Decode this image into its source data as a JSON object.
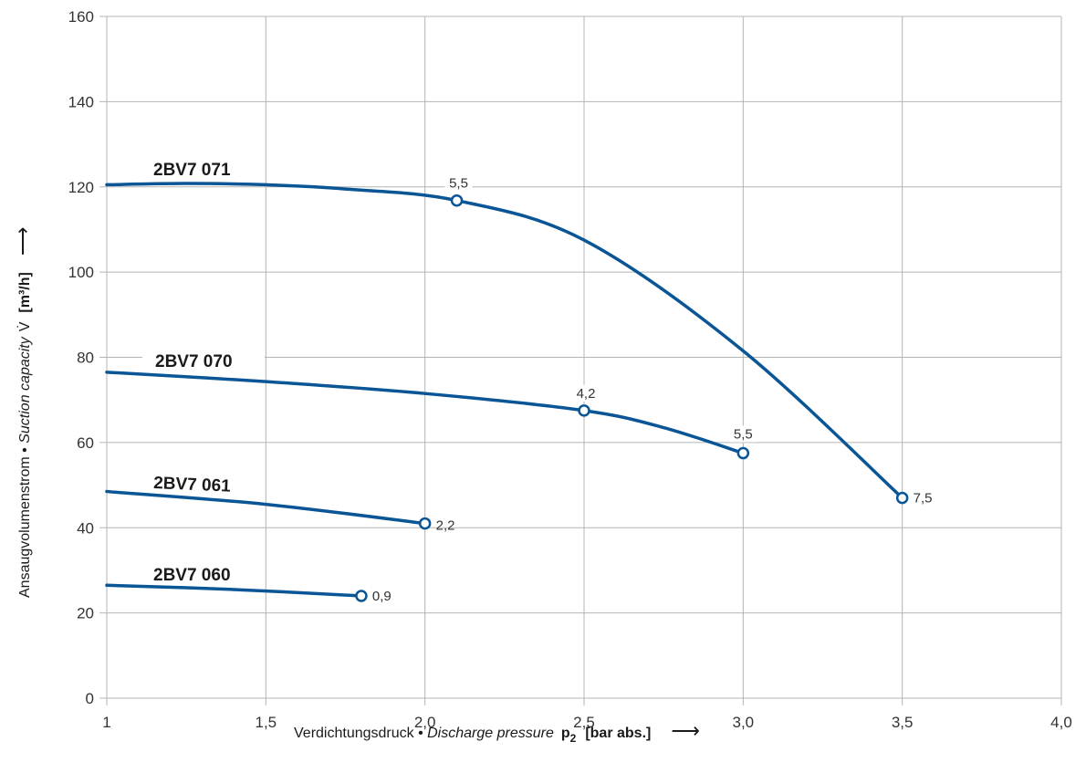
{
  "chart_data": {
    "type": "line",
    "xlim": [
      1,
      4
    ],
    "ylim": [
      0,
      160
    ],
    "x_ticks": [
      1,
      1.5,
      2,
      2.5,
      3,
      3.5,
      4
    ],
    "x_tick_labels": [
      "1",
      "1,5",
      "2,0",
      "2,5",
      "3,0",
      "3,5",
      "4,0"
    ],
    "y_ticks": [
      0,
      20,
      40,
      60,
      80,
      100,
      120,
      140,
      160
    ],
    "y_tick_labels": [
      "0",
      "20",
      "40",
      "60",
      "80",
      "100",
      "120",
      "140",
      "160"
    ],
    "grid": true,
    "xlabel": {
      "prefix": "Verdichtungsdruck • ",
      "italic": "Discharge pressure",
      "symbol": "p",
      "subscript": "2",
      "unit": "[bar abs.]",
      "arrow": "⟶"
    },
    "ylabel": {
      "prefix": "Ansaugvolumenstrom • ",
      "italic": "Suction capacity",
      "symbol": "V̇",
      "unit": "[m³/h]",
      "arrow": "⟶"
    },
    "line_color": "#0a5596",
    "series": [
      {
        "name": "2BV7 071",
        "x": [
          1.0,
          1.25,
          1.5,
          1.75,
          2.1,
          2.5,
          3.0,
          3.5
        ],
        "y": [
          120.5,
          120.8,
          120.5,
          119.5,
          116.8,
          107.5,
          81.5,
          47.0
        ],
        "endpoints": [
          {
            "x": 2.1,
            "y": 116.8,
            "label": "5,5"
          },
          {
            "x": 3.5,
            "y": 47.0,
            "label": "7,5"
          }
        ]
      },
      {
        "name": "2BV7 070",
        "x": [
          1.0,
          1.5,
          2.0,
          2.5,
          2.75,
          3.0
        ],
        "y": [
          76.5,
          74.3,
          71.5,
          67.5,
          63.5,
          57.5
        ],
        "endpoints": [
          {
            "x": 2.5,
            "y": 67.5,
            "label": "4,2"
          },
          {
            "x": 3.0,
            "y": 57.5,
            "label": "5,5"
          }
        ]
      },
      {
        "name": "2BV7 061",
        "x": [
          1.0,
          1.5,
          2.0
        ],
        "y": [
          48.5,
          45.5,
          41.0
        ],
        "endpoints": [
          {
            "x": 2.0,
            "y": 41.0,
            "label": "2,2"
          }
        ]
      },
      {
        "name": "2BV7 060",
        "x": [
          1.0,
          1.4,
          1.8
        ],
        "y": [
          26.5,
          25.5,
          24.0
        ],
        "endpoints": [
          {
            "x": 1.8,
            "y": 24.0,
            "label": "0,9"
          }
        ]
      }
    ]
  }
}
